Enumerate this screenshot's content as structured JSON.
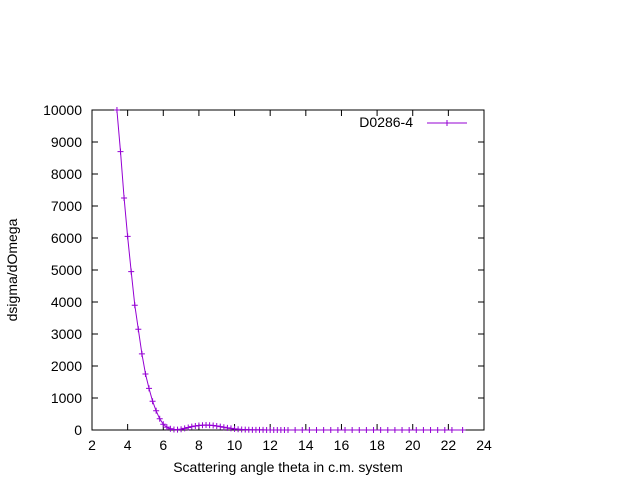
{
  "chart_data": {
    "type": "line",
    "title": "",
    "xlabel": "Scattering angle theta in c.m. system",
    "ylabel": "dsigma/dOmega",
    "xlim": [
      2,
      24
    ],
    "ylim": [
      0,
      10000
    ],
    "xticks": [
      2,
      4,
      6,
      8,
      10,
      12,
      14,
      16,
      18,
      20,
      22,
      24
    ],
    "yticks": [
      0,
      1000,
      2000,
      3000,
      4000,
      5000,
      6000,
      7000,
      8000,
      9000,
      10000
    ],
    "grid": false,
    "legend_position": "top-right",
    "series": [
      {
        "name": "D0286-4",
        "color": "#9400d3",
        "marker": "plus",
        "x": [
          3.4,
          3.6,
          3.8,
          4.0,
          4.2,
          4.4,
          4.6,
          4.8,
          5.0,
          5.2,
          5.4,
          5.6,
          5.8,
          6.0,
          6.2,
          6.4,
          6.6,
          6.8,
          7.0,
          7.2,
          7.4,
          7.6,
          7.8,
          8.0,
          8.2,
          8.4,
          8.6,
          8.8,
          9.0,
          9.2,
          9.4,
          9.6,
          9.8,
          10.0,
          10.2,
          10.4,
          10.6,
          10.8,
          11.0,
          11.2,
          11.4,
          11.6,
          11.8,
          12.0,
          12.2,
          12.4,
          12.6,
          12.8,
          13.0,
          13.4,
          13.8,
          14.2,
          14.6,
          15.0,
          15.4,
          15.8,
          16.2,
          16.6,
          17.0,
          17.4,
          17.8,
          18.2,
          18.6,
          19.0,
          19.4,
          19.8,
          20.2,
          20.6,
          21.0,
          21.4,
          21.8,
          22.2,
          22.8
        ],
        "y": [
          10000,
          8700,
          7250,
          6050,
          4950,
          3900,
          3150,
          2380,
          1750,
          1300,
          900,
          600,
          350,
          180,
          90,
          40,
          15,
          10,
          25,
          50,
          80,
          105,
          125,
          140,
          150,
          155,
          150,
          140,
          125,
          105,
          85,
          65,
          50,
          35,
          25,
          15,
          10,
          6,
          4,
          3,
          2,
          2,
          1,
          1,
          1,
          1,
          1,
          1,
          1,
          1,
          1,
          1,
          1,
          1,
          1,
          1,
          1,
          1,
          1,
          1,
          1,
          1,
          1,
          1,
          1,
          1,
          1,
          1,
          1,
          1,
          1,
          1,
          1
        ]
      }
    ]
  }
}
